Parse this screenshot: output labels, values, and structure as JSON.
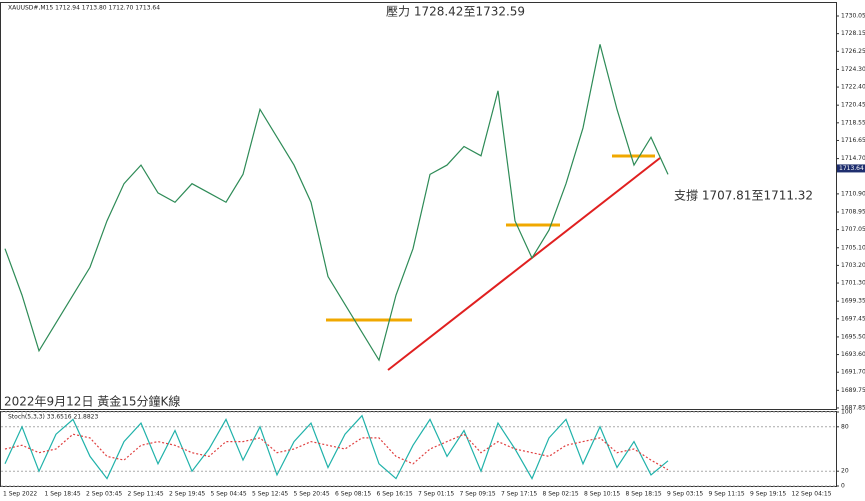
{
  "chart_data": [
    {
      "type": "line",
      "title": "XAUUSD#,M15  1712.94 1713.80 1712.70 1713.64",
      "annotations": [
        "壓力 1728.42至1732.59",
        "支撐 1707.81至1711.32",
        "2022年9月12日 黃金15分鐘K線"
      ],
      "series": [
        {
          "color": "#2e8b57",
          "values": [
            1705,
            1700,
            1694,
            1697,
            1700,
            1703,
            1708,
            1712,
            1714,
            1711,
            1710,
            1712,
            1711,
            1710,
            1713,
            1720,
            1717,
            1714,
            1710,
            1702,
            1699,
            1696,
            1693,
            1700,
            1705,
            1713,
            1714,
            1716,
            1715,
            1722,
            1708,
            1704,
            1707,
            1712,
            1718,
            1727,
            1720,
            1714,
            1717,
            1713
          ]
        }
      ],
      "last_price": {
        "value": 1713.64,
        "label": "1713.64"
      },
      "ylim": [
        1687.74,
        1731.45
      ],
      "yticks": [
        {
          "value": 1730.05,
          "label": "1730.05"
        },
        {
          "value": 1728.15,
          "label": "1728.15"
        },
        {
          "value": 1726.25,
          "label": "1726.25"
        },
        {
          "value": 1724.3,
          "label": "1724.30"
        },
        {
          "value": 1722.4,
          "label": "1722.40"
        },
        {
          "value": 1720.45,
          "label": "1720.45"
        },
        {
          "value": 1718.55,
          "label": "1718.55"
        },
        {
          "value": 1716.65,
          "label": "1716.65"
        },
        {
          "value": 1714.7,
          "label": "1714.70"
        },
        {
          "value": 1710.9,
          "label": "1710.90"
        },
        {
          "value": 1708.95,
          "label": "1708.95"
        },
        {
          "value": 1707.05,
          "label": "1707.05"
        },
        {
          "value": 1705.1,
          "label": "1705.10"
        },
        {
          "value": 1703.2,
          "label": "1703.20"
        },
        {
          "value": 1701.3,
          "label": "1701.30"
        },
        {
          "value": 1699.35,
          "label": "1699.35"
        },
        {
          "value": 1697.45,
          "label": "1697.45"
        },
        {
          "value": 1695.5,
          "label": "1695.50"
        },
        {
          "value": 1693.6,
          "label": "1693.60"
        },
        {
          "value": 1691.7,
          "label": "1691.70"
        },
        {
          "value": 1689.75,
          "label": "1689.75"
        },
        {
          "value": 1687.85,
          "label": "1687.85"
        }
      ]
    },
    {
      "type": "line",
      "title": "Stoch(5,3,3) 33.6516 21.8823",
      "series": [
        {
          "color": "#20b2aa",
          "values": [
            30,
            80,
            20,
            70,
            90,
            40,
            10,
            60,
            85,
            30,
            75,
            20,
            50,
            90,
            35,
            80,
            15,
            60,
            85,
            25,
            70,
            95,
            30,
            10,
            55,
            90,
            40,
            75,
            20,
            85,
            50,
            10,
            65,
            90,
            30,
            80,
            25,
            60,
            15,
            34
          ]
        },
        {
          "color": "#e04040",
          "dashed": true,
          "values": [
            50,
            55,
            45,
            50,
            70,
            65,
            40,
            35,
            55,
            60,
            55,
            45,
            40,
            60,
            60,
            65,
            45,
            50,
            60,
            55,
            50,
            65,
            65,
            40,
            30,
            50,
            60,
            70,
            45,
            60,
            50,
            45,
            40,
            55,
            60,
            65,
            45,
            50,
            35,
            22
          ]
        }
      ],
      "ylim": [
        0,
        100
      ],
      "yticks": [
        100,
        80,
        20,
        0
      ],
      "x_labels": [
        "1 Sep 2022",
        "1 Sep 18:45",
        "2 Sep 03:45",
        "2 Sep 11:45",
        "2 Sep 19:45",
        "5 Sep 04:45",
        "5 Sep 12:45",
        "5 Sep 20:45",
        "6 Sep 08:15",
        "6 Sep 16:15",
        "7 Sep 01:15",
        "7 Sep 09:15",
        "7 Sep 17:15",
        "8 Sep 02:15",
        "8 Sep 10:15",
        "8 Sep 18:15",
        "9 Sep 03:15",
        "9 Sep 11:15",
        "9 Sep 19:15",
        "12 Sep 04:15"
      ]
    }
  ]
}
